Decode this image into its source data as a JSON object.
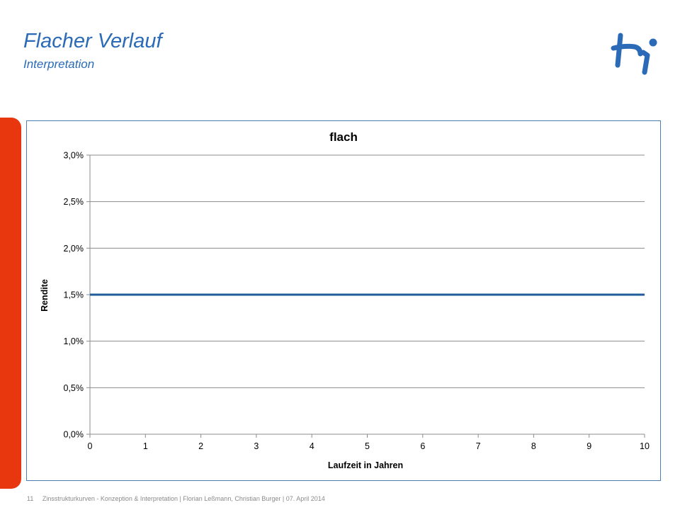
{
  "slide": {
    "title": "Flacher Verlauf",
    "subtitle": "Interpretation",
    "accent_color": "#2a6ab7",
    "sidebar_color": "#e8360f",
    "logo_icon": "hi-brand-logo-icon"
  },
  "footer": {
    "page_number": "11",
    "text": "Zinsstrukturkurven - Konzeption & Interpretation | Florian Leßmann, Christian Burger | 07. April 2014"
  },
  "chart_data": {
    "type": "line",
    "title": "flach",
    "xlabel": "Laufzeit in Jahren",
    "ylabel": "Rendite",
    "x": [
      0,
      1,
      2,
      3,
      4,
      5,
      6,
      7,
      8,
      9,
      10
    ],
    "series": [
      {
        "values": [
          1.5,
          1.5,
          1.5,
          1.5,
          1.5,
          1.5,
          1.5,
          1.5,
          1.5,
          1.5,
          1.5
        ],
        "color": "#1f5c99"
      }
    ],
    "xlim": [
      0,
      10
    ],
    "ylim": [
      0,
      3.0
    ],
    "x_ticks": [
      "0",
      "1",
      "2",
      "3",
      "4",
      "5",
      "6",
      "7",
      "8",
      "9",
      "10"
    ],
    "y_ticks": [
      {
        "value": 0,
        "label": "0,0%"
      },
      {
        "value": 0.5,
        "label": "0,5%"
      },
      {
        "value": 1.0,
        "label": "1,0%"
      },
      {
        "value": 1.5,
        "label": "1,5%"
      },
      {
        "value": 2.0,
        "label": "2,0%"
      },
      {
        "value": 2.5,
        "label": "2,5%"
      },
      {
        "value": 3.0,
        "label": "3,0%"
      }
    ],
    "grid": true,
    "legend": "none"
  }
}
